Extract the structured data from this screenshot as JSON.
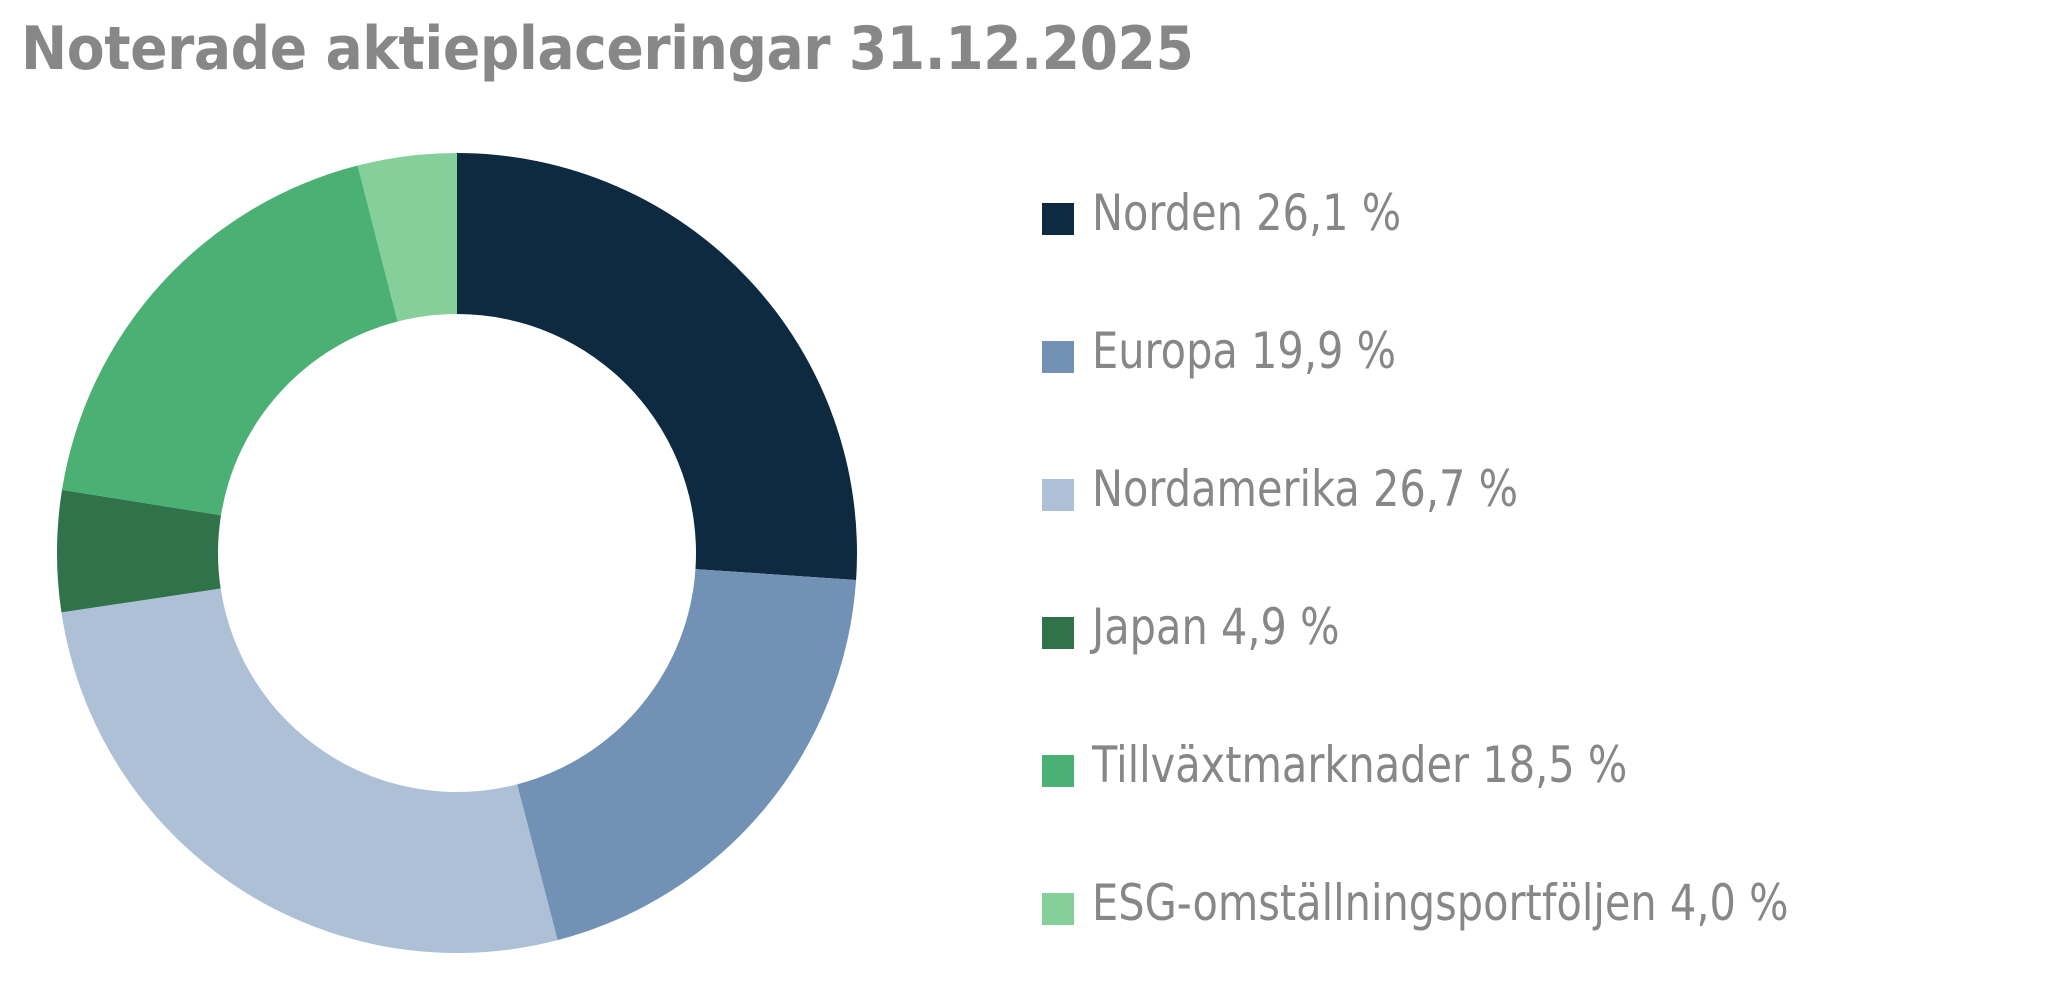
{
  "title": "Noterade aktieplaceringar 31.12.2025",
  "chart_data": {
    "type": "pie",
    "variant": "donut",
    "title": "Noterade aktieplaceringar 31.12.2025",
    "start_angle": "top (12 o'clock)",
    "direction": "clockwise",
    "categories": [
      "Norden",
      "Europa",
      "Nordamerika",
      "Japan",
      "Tillväxtmarknader",
      "ESG-omställningsportföljen"
    ],
    "values": [
      26.1,
      19.9,
      26.7,
      4.9,
      18.5,
      4.0
    ],
    "unit": "%",
    "colors": [
      "#0D2A40",
      "#7192B5",
      "#ADC0D5",
      "#307249",
      "#4AB073",
      "#84CF9A"
    ],
    "legend_position": "right",
    "legend": [
      {
        "label": "Norden 26,1 %",
        "color": "#0D2A40"
      },
      {
        "label": "Europa 19,9 %",
        "color": "#7192B5"
      },
      {
        "label": "Nordamerika 26,7 %",
        "color": "#ADC0D5"
      },
      {
        "label": "Japan 4,9 %",
        "color": "#307249"
      },
      {
        "label": "Tillväxtmarknader 18,5 %",
        "color": "#4AB073"
      },
      {
        "label": "ESG-omställningsportföljen 4,0 %",
        "color": "#84CF9A"
      }
    ]
  },
  "text_color": "#878787"
}
